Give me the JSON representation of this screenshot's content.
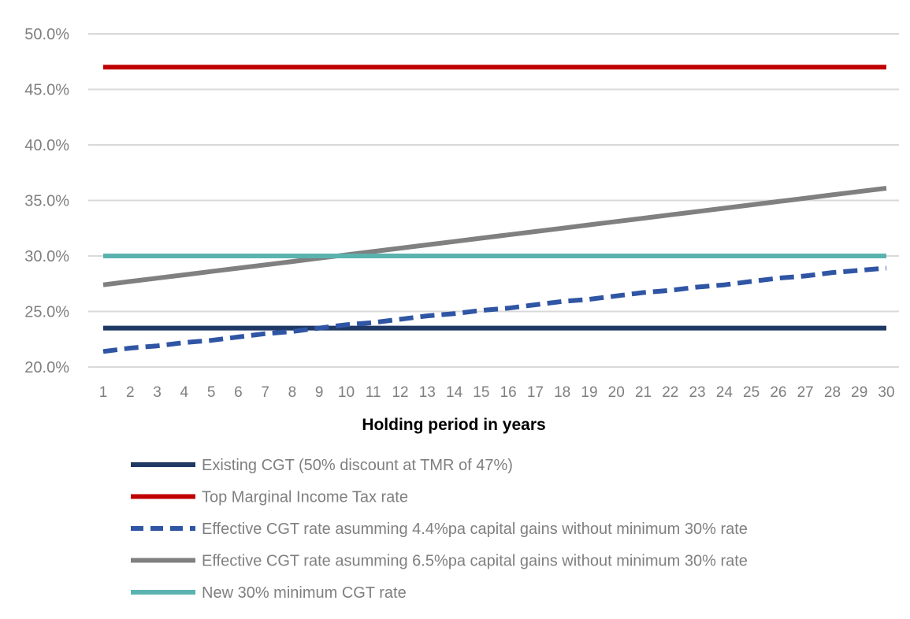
{
  "chart_data": {
    "type": "line",
    "xlabel": "Holding period in years",
    "ylabel": "",
    "ylim": [
      20,
      50
    ],
    "y_ticks": [
      "20.0%",
      "25.0%",
      "30.0%",
      "35.0%",
      "40.0%",
      "45.0%",
      "50.0%"
    ],
    "y_tick_values": [
      20,
      25,
      30,
      35,
      40,
      45,
      50
    ],
    "x": [
      1,
      2,
      3,
      4,
      5,
      6,
      7,
      8,
      9,
      10,
      11,
      12,
      13,
      14,
      15,
      16,
      17,
      18,
      19,
      20,
      21,
      22,
      23,
      24,
      25,
      26,
      27,
      28,
      29,
      30
    ],
    "grid": "horizontal",
    "legend_position": "bottom",
    "series": [
      {
        "name": "Existing CGT (50% discount at TMR of 47%)",
        "color": "#1f3864",
        "dash": "solid",
        "values": [
          23.5,
          23.5,
          23.5,
          23.5,
          23.5,
          23.5,
          23.5,
          23.5,
          23.5,
          23.5,
          23.5,
          23.5,
          23.5,
          23.5,
          23.5,
          23.5,
          23.5,
          23.5,
          23.5,
          23.5,
          23.5,
          23.5,
          23.5,
          23.5,
          23.5,
          23.5,
          23.5,
          23.5,
          23.5,
          23.5
        ]
      },
      {
        "name": "Top Marginal Income Tax rate",
        "color": "#c00000",
        "dash": "solid",
        "values": [
          47,
          47,
          47,
          47,
          47,
          47,
          47,
          47,
          47,
          47,
          47,
          47,
          47,
          47,
          47,
          47,
          47,
          47,
          47,
          47,
          47,
          47,
          47,
          47,
          47,
          47,
          47,
          47,
          47,
          47
        ]
      },
      {
        "name": "Effective CGT rate asumming 4.4%pa capital gains without minimum 30% rate",
        "color": "#2f55a4",
        "dash": "dashed",
        "values": [
          21.4,
          21.7,
          21.9,
          22.2,
          22.4,
          22.7,
          23.0,
          23.2,
          23.5,
          23.8,
          24.0,
          24.3,
          24.6,
          24.8,
          25.1,
          25.3,
          25.6,
          25.9,
          26.1,
          26.4,
          26.7,
          26.9,
          27.2,
          27.4,
          27.7,
          28.0,
          28.2,
          28.5,
          28.7,
          28.9
        ]
      },
      {
        "name": "Effective CGT rate asumming 6.5%pa capital gains without minimum 30% rate",
        "color": "#808080",
        "dash": "solid",
        "values": [
          27.4,
          27.7,
          28.0,
          28.3,
          28.6,
          28.9,
          29.2,
          29.5,
          29.8,
          30.1,
          30.4,
          30.7,
          31.0,
          31.3,
          31.6,
          31.9,
          32.2,
          32.5,
          32.8,
          33.1,
          33.4,
          33.7,
          34.0,
          34.3,
          34.6,
          34.9,
          35.2,
          35.5,
          35.8,
          36.1
        ]
      },
      {
        "name": "New 30% minimum CGT rate",
        "color": "#5bb3b0",
        "dash": "solid",
        "values": [
          30,
          30,
          30,
          30,
          30,
          30,
          30,
          30,
          30,
          30,
          30,
          30,
          30,
          30,
          30,
          30,
          30,
          30,
          30,
          30,
          30,
          30,
          30,
          30,
          30,
          30,
          30,
          30,
          30,
          30
        ]
      }
    ]
  }
}
